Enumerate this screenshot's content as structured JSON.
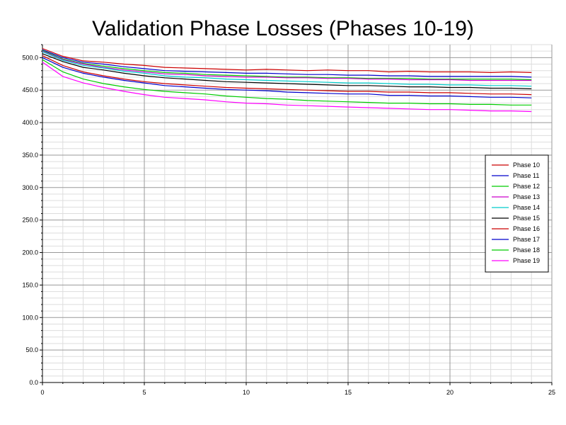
{
  "chart_data": {
    "type": "line",
    "title": "Validation Phase Losses (Phases 10-19)",
    "xlabel": "",
    "ylabel": "",
    "xlim": [
      0,
      25
    ],
    "ylim": [
      0,
      520
    ],
    "xticks": [
      0,
      5,
      10,
      15,
      20,
      25
    ],
    "yticks": [
      0,
      50,
      100,
      150,
      200,
      250,
      300,
      350,
      400,
      450,
      500
    ],
    "ytick_labels": [
      "0.0",
      "50.0",
      "100.0",
      "150.0",
      "200.0",
      "250.0",
      "300.0",
      "350.0",
      "400.0",
      "450.0",
      "500.0"
    ],
    "grid": true,
    "legend_position": "right",
    "x": [
      0,
      1,
      2,
      3,
      4,
      5,
      6,
      7,
      8,
      9,
      10,
      11,
      12,
      13,
      14,
      15,
      16,
      17,
      18,
      19,
      20,
      21,
      22,
      23,
      24
    ],
    "series": [
      {
        "name": "Phase 10",
        "color": "#cc0000",
        "values": [
          514,
          502,
          495,
          493,
          490,
          488,
          485,
          484,
          483,
          482,
          481,
          482,
          481,
          480,
          481,
          480,
          480,
          478,
          479,
          478,
          478,
          478,
          477,
          478,
          477
        ]
      },
      {
        "name": "Phase 11",
        "color": "#0000cc",
        "values": [
          512,
          500,
          493,
          490,
          486,
          483,
          480,
          479,
          478,
          477,
          476,
          476,
          475,
          474,
          474,
          473,
          473,
          472,
          472,
          471,
          471,
          471,
          471,
          471,
          470
        ]
      },
      {
        "name": "Phase 12",
        "color": "#00cc00",
        "values": [
          511,
          498,
          491,
          487,
          483,
          480,
          477,
          476,
          474,
          473,
          472,
          471,
          470,
          470,
          469,
          469,
          468,
          468,
          468,
          467,
          467,
          467,
          467,
          467,
          466
        ]
      },
      {
        "name": "Phase 13",
        "color": "#cc00cc",
        "values": [
          510,
          497,
          490,
          485,
          481,
          478,
          475,
          474,
          472,
          471,
          470,
          470,
          469,
          469,
          468,
          468,
          467,
          467,
          466,
          466,
          466,
          465,
          465,
          465,
          465
        ]
      },
      {
        "name": "Phase 14",
        "color": "#00cccc",
        "values": [
          509,
          496,
          488,
          484,
          479,
          476,
          472,
          470,
          469,
          467,
          466,
          465,
          464,
          463,
          462,
          461,
          461,
          460,
          459,
          459,
          458,
          458,
          457,
          457,
          456
        ]
      },
      {
        "name": "Phase 15",
        "color": "#000000",
        "values": [
          506,
          494,
          485,
          481,
          476,
          472,
          469,
          467,
          465,
          463,
          462,
          461,
          460,
          459,
          458,
          457,
          457,
          456,
          455,
          455,
          454,
          454,
          453,
          453,
          452
        ]
      },
      {
        "name": "Phase 16",
        "color": "#cc0000",
        "values": [
          503,
          488,
          478,
          472,
          467,
          463,
          460,
          458,
          456,
          454,
          453,
          452,
          451,
          450,
          449,
          448,
          448,
          447,
          447,
          446,
          446,
          445,
          444,
          444,
          443
        ]
      },
      {
        "name": "Phase 17",
        "color": "#0000cc",
        "values": [
          500,
          485,
          476,
          470,
          465,
          461,
          457,
          455,
          453,
          451,
          450,
          449,
          447,
          446,
          445,
          444,
          444,
          442,
          442,
          441,
          441,
          440,
          439,
          439,
          438
        ]
      },
      {
        "name": "Phase 18",
        "color": "#00cc00",
        "values": [
          497,
          478,
          467,
          460,
          455,
          451,
          448,
          446,
          444,
          441,
          439,
          437,
          436,
          434,
          433,
          432,
          431,
          430,
          430,
          429,
          429,
          428,
          428,
          427,
          427
        ]
      },
      {
        "name": "Phase 19",
        "color": "#ff00ff",
        "values": [
          493,
          471,
          461,
          454,
          448,
          443,
          439,
          437,
          435,
          432,
          430,
          429,
          427,
          426,
          425,
          424,
          423,
          422,
          421,
          420,
          420,
          419,
          418,
          418,
          417
        ]
      }
    ]
  }
}
